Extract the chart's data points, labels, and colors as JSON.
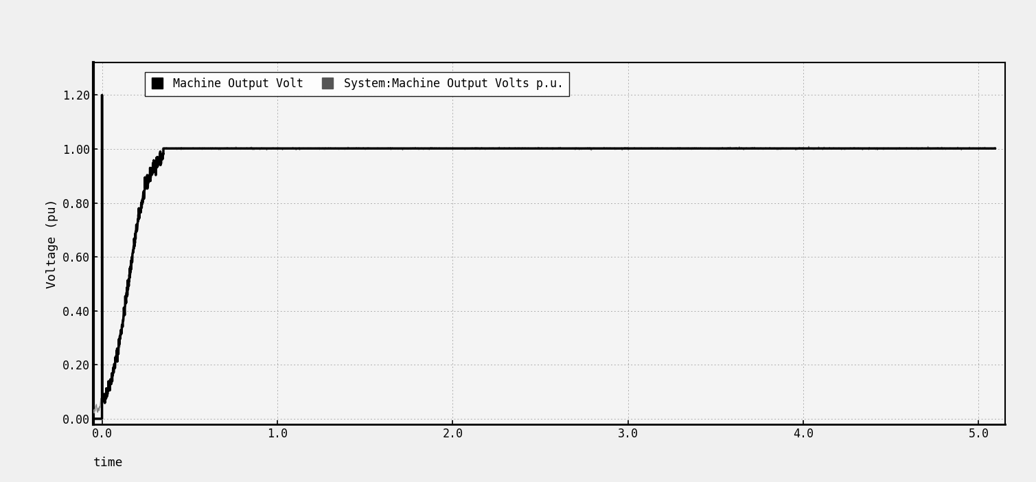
{
  "title": "",
  "xlabel": "time",
  "ylabel": "Voltage (pu)",
  "xlim": [
    -0.05,
    5.15
  ],
  "ylim": [
    -0.02,
    1.32
  ],
  "yticks": [
    0.0,
    0.2,
    0.4,
    0.6,
    0.8,
    1.0,
    1.2
  ],
  "ytick_labels": [
    "0.00",
    "0.20",
    "0.40",
    "0.60",
    "0.80",
    "1.00",
    "1.20"
  ],
  "xticks": [
    0.0,
    1.0,
    2.0,
    3.0,
    4.0,
    5.0
  ],
  "xtick_labels": [
    "0.0",
    "1.0",
    "2.0",
    "3.0",
    "4.0",
    "5.0"
  ],
  "legend1_label": "Machine Output Volt",
  "legend2_label": "System:Machine Output Volts p.u.",
  "line1_color": "#000000",
  "line2_color": "#888888",
  "background_color": "#f0f0f0",
  "plot_bg_color": "#f4f4f4",
  "grid_color": "#999999",
  "spine_color": "#000000"
}
